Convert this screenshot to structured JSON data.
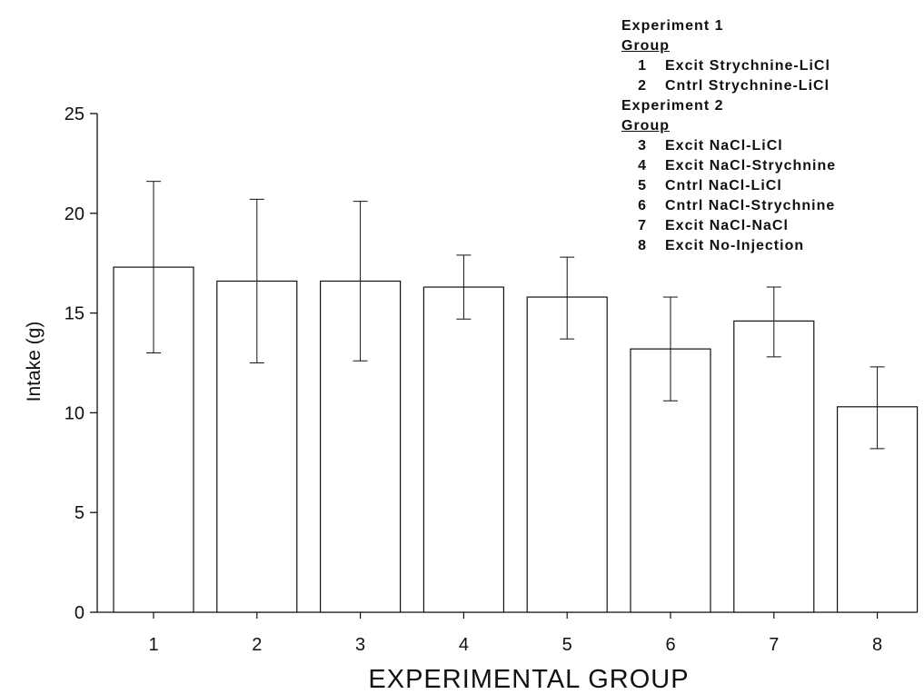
{
  "chart_data": {
    "type": "bar",
    "categories": [
      "1",
      "2",
      "3",
      "4",
      "5",
      "6",
      "7",
      "8"
    ],
    "values": [
      17.3,
      16.6,
      16.6,
      16.3,
      15.8,
      13.2,
      14.6,
      10.3
    ],
    "error_low": [
      13.0,
      12.5,
      12.6,
      14.7,
      13.7,
      10.6,
      12.8,
      8.2
    ],
    "error_high": [
      21.6,
      20.7,
      20.6,
      17.9,
      17.8,
      15.8,
      16.3,
      12.3
    ],
    "xlabel": "EXPERIMENTAL GROUP",
    "ylabel": "Intake (g)",
    "ylim": [
      0,
      25
    ],
    "yticks": [
      "0",
      "5",
      "10",
      "15",
      "20",
      "25"
    ],
    "grid": false,
    "legend_position": "top-right"
  },
  "legend": {
    "exp1_title": "Experiment 1",
    "exp1_group_header": "Group",
    "exp1_items": [
      {
        "num": "1",
        "label": "Excit Strychnine-LiCl"
      },
      {
        "num": "2",
        "label": "Cntrl Strychnine-LiCl"
      }
    ],
    "exp2_title": "Experiment 2",
    "exp2_group_header": "Group",
    "exp2_items": [
      {
        "num": "3",
        "label": "Excit NaCl-LiCl"
      },
      {
        "num": "4",
        "label": "Excit NaCl-Strychnine"
      },
      {
        "num": "5",
        "label": "Cntrl NaCl-LiCl"
      },
      {
        "num": "6",
        "label": "Cntrl NaCl-Strychnine"
      },
      {
        "num": "7",
        "label": "Excit NaCl-NaCl"
      },
      {
        "num": "8",
        "label": "Excit No-Injection"
      }
    ]
  }
}
